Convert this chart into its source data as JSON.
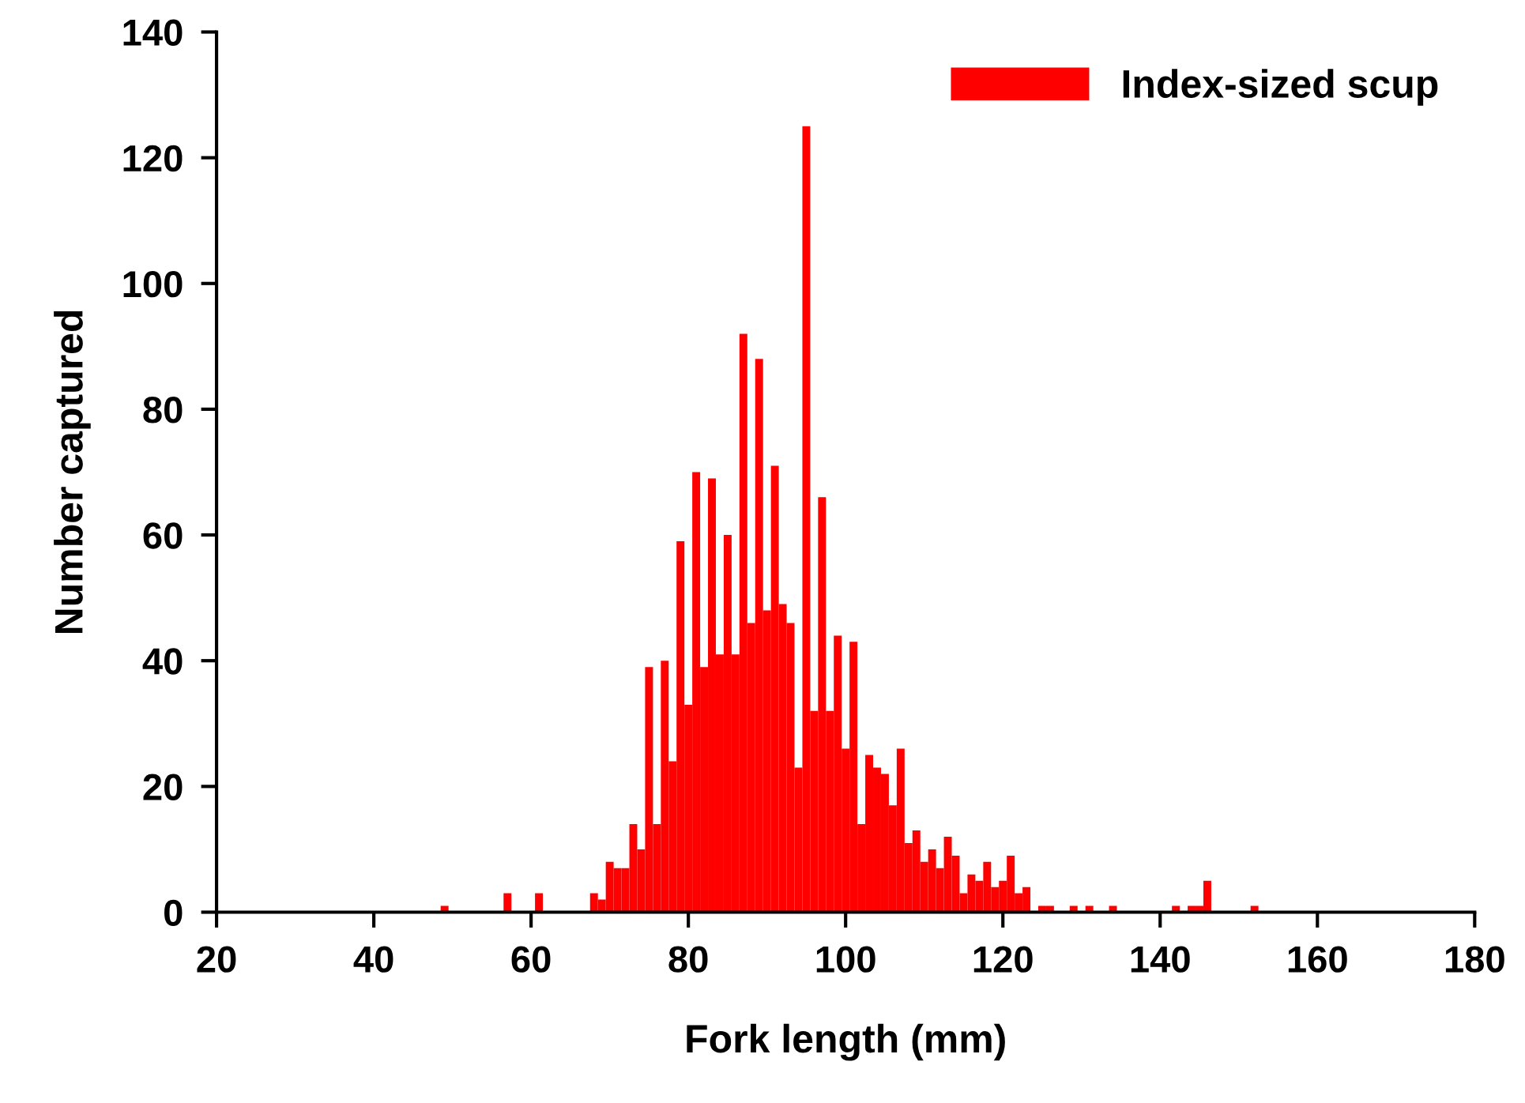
{
  "chart_data": {
    "type": "histogram",
    "xlabel": "Fork length (mm)",
    "ylabel": "Number captured",
    "bins": [
      48.5,
      49.5,
      50.5,
      51.5,
      52.5,
      53.5,
      54.5,
      55.5,
      56.5,
      57.5,
      58.5,
      59.5,
      60.5,
      61.5,
      62.5,
      63.5,
      64.5,
      65.5,
      66.5,
      67.5,
      68.5,
      69.5,
      70.5,
      71.5,
      72.5,
      73.5,
      74.5,
      75.5,
      76.5,
      77.5,
      78.5,
      79.5,
      80.5,
      81.5,
      82.5,
      83.5,
      84.5,
      85.5,
      86.5,
      87.5,
      88.5,
      89.5,
      90.5,
      91.5,
      92.5,
      93.5,
      94.5,
      95.5,
      96.5,
      97.5,
      98.5,
      99.5,
      100.5,
      101.5,
      102.5,
      103.5,
      104.5,
      105.5,
      106.5,
      107.5,
      108.5,
      109.5,
      110.5,
      111.5,
      112.5,
      113.5,
      114.5,
      115.5,
      116.5,
      117.5,
      118.5,
      119.5,
      120.5,
      121.5,
      122.5,
      123.5,
      124.5,
      125.5,
      126.5,
      127.5,
      128.5,
      129.5,
      130.5,
      131.5,
      132.5,
      133.5,
      134.5,
      135.5,
      136.5,
      137.5,
      138.5,
      139.5,
      140.5,
      141.5,
      142.5,
      143.5,
      144.5,
      145.5,
      146.5,
      147.5,
      148.5,
      149.5,
      150.5,
      151.5,
      152.5
    ],
    "series": [
      {
        "name": "Index-sized scup",
        "color": "#ff0000",
        "values": [
          1,
          0,
          0,
          0,
          0,
          0,
          0,
          0,
          3,
          0,
          0,
          0,
          3,
          0,
          0,
          0,
          0,
          0,
          0,
          3,
          2,
          8,
          7,
          7,
          14,
          10,
          39,
          14,
          40,
          24,
          59,
          33,
          70,
          39,
          69,
          41,
          60,
          41,
          92,
          46,
          88,
          48,
          71,
          49,
          46,
          23,
          125,
          32,
          66,
          32,
          44,
          26,
          43,
          14,
          25,
          23,
          22,
          17,
          26,
          11,
          13,
          8,
          10,
          7,
          12,
          9,
          3,
          6,
          5,
          8,
          4,
          5,
          9,
          3,
          4,
          0,
          1,
          1,
          0,
          0,
          1,
          0,
          1,
          0,
          0,
          1,
          0,
          0,
          0,
          0,
          0,
          0,
          0,
          1,
          0,
          1,
          1,
          5,
          0,
          0,
          0,
          0,
          0,
          1
        ]
      }
    ],
    "xlim": [
      20,
      180
    ],
    "xticks": [
      20,
      40,
      60,
      80,
      100,
      120,
      140,
      160,
      180
    ],
    "ylim": [
      0,
      140
    ],
    "yticks": [
      0,
      20,
      40,
      60,
      80,
      100,
      120,
      140
    ],
    "legend": "top right"
  }
}
